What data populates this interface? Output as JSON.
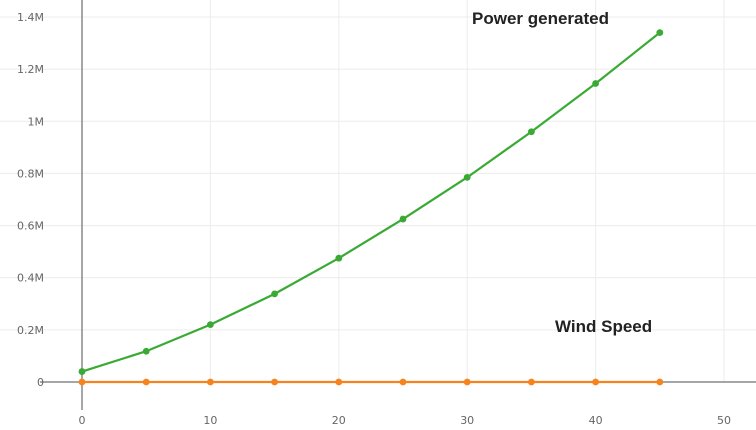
{
  "chart_data": {
    "type": "line",
    "title": "",
    "xlabel": "",
    "ylabel": "",
    "x": [
      0,
      5,
      10,
      15,
      20,
      25,
      30,
      35,
      40,
      45
    ],
    "xlim": [
      0,
      50
    ],
    "ylim": [
      0,
      1400000
    ],
    "x_ticks": [
      "0",
      "10",
      "20",
      "30",
      "40",
      "50"
    ],
    "y_ticks": [
      "0",
      "0.2M",
      "0.4M",
      "0.6M",
      "0.8M",
      "1M",
      "1.2M",
      "1.4M"
    ],
    "grid": true,
    "legend": "none",
    "series": [
      {
        "name": "Power generated",
        "color": "#3aaa35",
        "values": [
          40000,
          118000,
          220000,
          338000,
          475000,
          625000,
          785000,
          960000,
          1145000,
          1340000
        ]
      },
      {
        "name": "Wind Speed",
        "color": "#f5841f",
        "values": [
          0,
          5,
          10,
          15,
          20,
          25,
          30,
          35,
          40,
          45
        ]
      }
    ]
  }
}
